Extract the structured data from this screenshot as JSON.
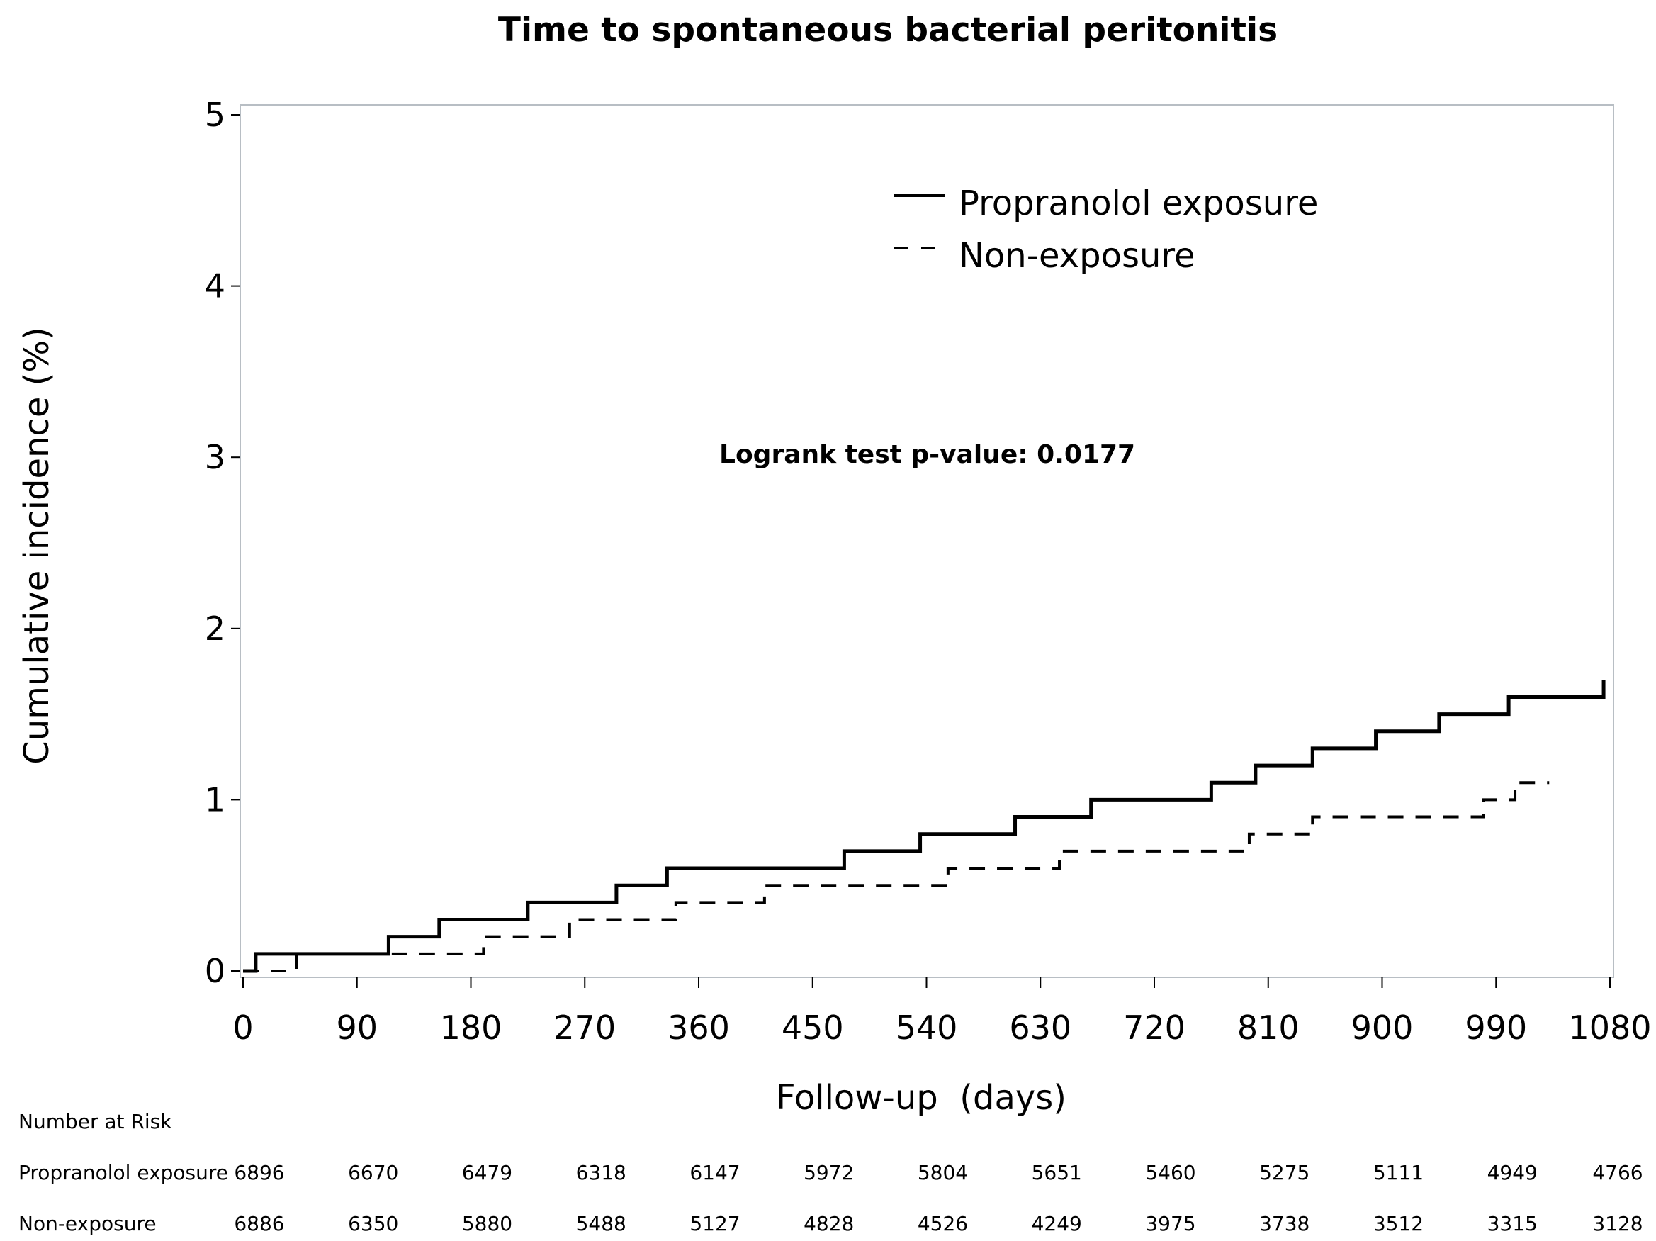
{
  "chart_data": {
    "type": "line",
    "step": true,
    "title": "Time to spontaneous bacterial peritonitis",
    "xlabel": "Follow-up  (days)",
    "ylabel": "Cumulative incidence (%)",
    "xlim": [
      0,
      1080
    ],
    "ylim": [
      0,
      5
    ],
    "xticks": [
      "0",
      "90",
      "180",
      "270",
      "360",
      "450",
      "540",
      "630",
      "720",
      "810",
      "900",
      "990",
      "1080"
    ],
    "yticks": [
      "0",
      "1",
      "2",
      "3",
      "4",
      "5"
    ],
    "annotation": "Logrank test p-value: 0.0177",
    "legend_position": "top-right",
    "series": [
      {
        "name": "Propranolol exposure",
        "style": "solid",
        "points": [
          [
            0,
            0
          ],
          [
            10,
            0.1
          ],
          [
            115,
            0.2
          ],
          [
            155,
            0.3
          ],
          [
            225,
            0.4
          ],
          [
            295,
            0.5
          ],
          [
            335,
            0.6
          ],
          [
            475,
            0.7
          ],
          [
            535,
            0.8
          ],
          [
            610,
            0.9
          ],
          [
            670,
            1.0
          ],
          [
            765,
            1.1
          ],
          [
            800,
            1.2
          ],
          [
            845,
            1.3
          ],
          [
            895,
            1.4
          ],
          [
            945,
            1.5
          ],
          [
            1000,
            1.6
          ],
          [
            1075,
            1.7
          ]
        ]
      },
      {
        "name": "Non-exposure",
        "style": "dashed",
        "points": [
          [
            0,
            0
          ],
          [
            42,
            0.1
          ],
          [
            190,
            0.2
          ],
          [
            258,
            0.3
          ],
          [
            342,
            0.4
          ],
          [
            412,
            0.5
          ],
          [
            557,
            0.6
          ],
          [
            645,
            0.7
          ],
          [
            795,
            0.8
          ],
          [
            845,
            0.9
          ],
          [
            980,
            1.0
          ],
          [
            1005,
            1.1
          ],
          [
            1032,
            1.1
          ]
        ]
      }
    ]
  },
  "risk_table": {
    "header": "Number at Risk",
    "rows": [
      {
        "label": "Propranolol exposure",
        "values": [
          "6896",
          "6670",
          "6479",
          "6318",
          "6147",
          "5972",
          "5804",
          "5651",
          "5460",
          "5275",
          "5111",
          "4949",
          "4766"
        ]
      },
      {
        "label": "Non-exposure",
        "values": [
          "6886",
          "6350",
          "5880",
          "5488",
          "5127",
          "4828",
          "4526",
          "4249",
          "3975",
          "3738",
          "3512",
          "3315",
          "3128"
        ]
      }
    ]
  }
}
